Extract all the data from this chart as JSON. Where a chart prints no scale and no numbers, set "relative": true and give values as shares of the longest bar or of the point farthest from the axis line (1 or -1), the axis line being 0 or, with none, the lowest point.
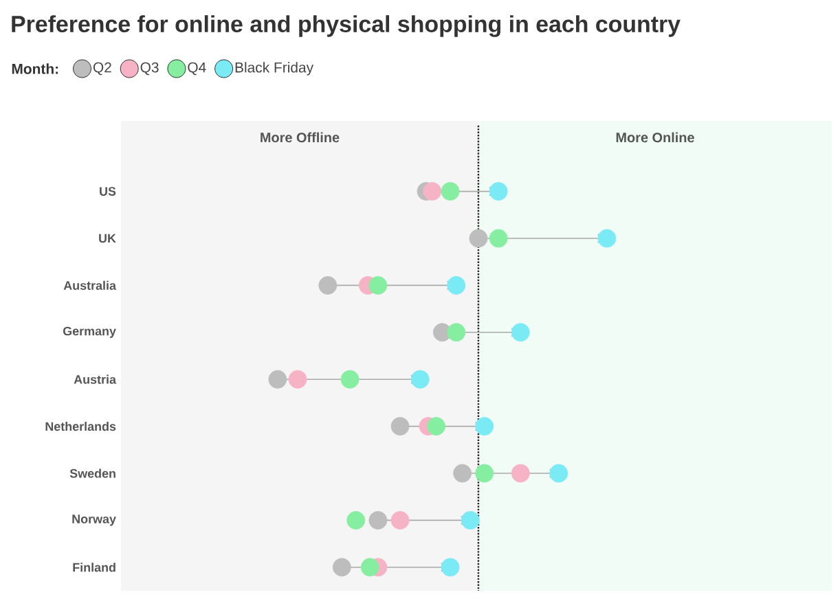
{
  "chart_data": {
    "type": "scatter",
    "orientation": "horizontal",
    "relative": true,
    "marker": "circle",
    "title": "Preference for online and physical shopping in each country",
    "legend_title": "Month:",
    "legend": "top left",
    "categories": [
      "US",
      "UK",
      "Australia",
      "Germany",
      "Austria",
      "Netherlands",
      "Sweden",
      "Norway",
      "Finland"
    ],
    "series": [
      {
        "name": "Q2",
        "color": "#bdbdbd",
        "values": [
          -0.26,
          0,
          -0.75,
          -0.18,
          -1,
          -0.39,
          -0.08,
          -0.5,
          -0.68
        ]
      },
      {
        "name": "Q3",
        "color": "#f7b3c6",
        "values": [
          -0.23,
          null,
          -0.55,
          null,
          -0.9,
          -0.25,
          0.21,
          -0.39,
          -0.5
        ]
      },
      {
        "name": "Q4",
        "color": "#86eea0",
        "values": [
          -0.14,
          0.1,
          -0.5,
          -0.11,
          -0.64,
          -0.21,
          0.03,
          -0.61,
          -0.54
        ]
      },
      {
        "name": "Black Friday",
        "color": "#7aeaf5",
        "values": [
          0.1,
          0.64,
          -0.11,
          0.21,
          -0.29,
          0.03,
          0.4,
          -0.04,
          -0.14
        ]
      }
    ],
    "bands": [
      {
        "axis": "x",
        "from": -1.78,
        "to": 0,
        "label": "More Offline",
        "color": "#f5f5f5"
      },
      {
        "axis": "x",
        "from": 0,
        "to": 1.76,
        "label": "More Online",
        "color": "#f0fcf5"
      }
    ],
    "ref_lines": [
      {
        "axis": "x",
        "value": 0,
        "line_style": "dotted",
        "color": "#222222"
      }
    ]
  }
}
